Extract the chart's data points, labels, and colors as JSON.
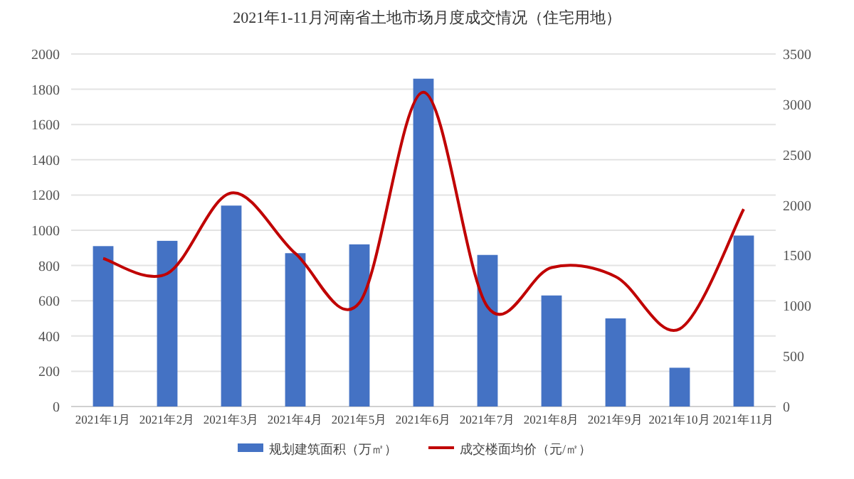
{
  "chart_data": {
    "type": "bar",
    "title": "2021年1-11月河南省土地市场月度成交情况（住宅用地）",
    "categories": [
      "2021年1月",
      "2021年2月",
      "2021年3月",
      "2021年4月",
      "2021年5月",
      "2021年6月",
      "2021年7月",
      "2021年8月",
      "2021年9月",
      "2021年10月",
      "2021年11月"
    ],
    "series": [
      {
        "name": "规划建筑面积（万㎡）",
        "color": "#4472c4",
        "values": [
          910,
          940,
          1140,
          870,
          920,
          1860,
          860,
          630,
          500,
          220,
          970
        ]
      },
      {
        "name": "成交楼面均价（元/㎡）",
        "type": "line",
        "axis": "y2",
        "color": "#c00000",
        "values": [
          1470,
          1320,
          2120,
          1520,
          1030,
          3120,
          990,
          1380,
          1290,
          770,
          1960
        ]
      }
    ],
    "ylim": [
      0,
      2000
    ],
    "yticks": [
      0,
      200,
      400,
      600,
      800,
      1000,
      1200,
      1400,
      1600,
      1800,
      2000
    ],
    "y2lim": [
      0,
      3500
    ],
    "y2ticks": [
      0,
      500,
      1000,
      1500,
      2000,
      2500,
      3000,
      3500
    ],
    "grid": "y",
    "legend": "bottom",
    "marker": "none",
    "line_style": "solid"
  }
}
